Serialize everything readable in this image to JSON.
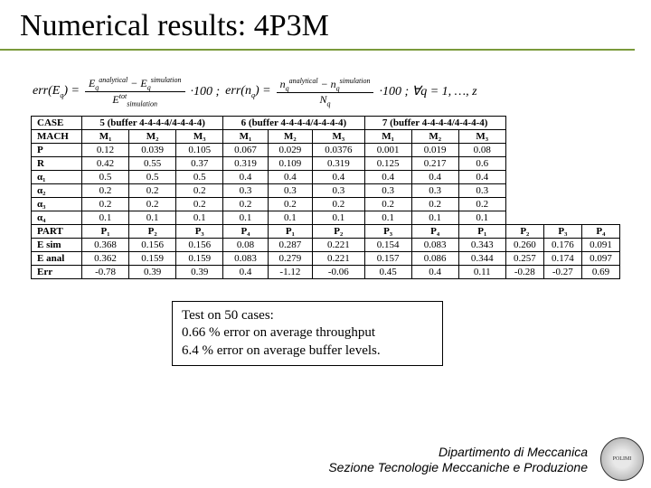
{
  "title": "Numerical results: 4P3M",
  "formula": {
    "lhs1": "err(E",
    "sub_q": "q",
    "eq": ") =",
    "num1": "E_q^{analytical} − E_q^{simulation}",
    "den1": "E_{simulation}^{tot}",
    "times": "·100 ;",
    "lhs2": "err(n",
    "num2": "n_q^{analytical} − n_q^{simulation}",
    "den2": "N_q",
    "tail": "·100 ; ∀q = 1, …, z"
  },
  "table": {
    "case_label": "CASE",
    "mach_label": "MACH",
    "cases": [
      "5 (buffer 4-4-4-4/4-4-4-4)",
      "6 (buffer 4-4-4-4/4-4-4-4)",
      "7 (buffer 4-4-4-4/4-4-4-4)"
    ],
    "mach_cols": [
      "M₁",
      "M₂",
      "M₃",
      "M₁",
      "M₂",
      "M₃",
      "M₁",
      "M₂",
      "M₃"
    ],
    "rows1": [
      {
        "h": "P",
        "v": [
          "0.12",
          "0.039",
          "0.105",
          "0.067",
          "0.029",
          "0.0376",
          "0.001",
          "0.019",
          "0.08"
        ]
      },
      {
        "h": "R",
        "v": [
          "0.42",
          "0.55",
          "0.37",
          "0.319",
          "0.109",
          "0.319",
          "0.125",
          "0.217",
          "0.6"
        ]
      },
      {
        "h": "α₁",
        "v": [
          "0.5",
          "0.5",
          "0.5",
          "0.4",
          "0.4",
          "0.4",
          "0.4",
          "0.4",
          "0.4"
        ]
      },
      {
        "h": "α₂",
        "v": [
          "0.2",
          "0.2",
          "0.2",
          "0.3",
          "0.3",
          "0.3",
          "0.3",
          "0.3",
          "0.3"
        ]
      },
      {
        "h": "α₃",
        "v": [
          "0.2",
          "0.2",
          "0.2",
          "0.2",
          "0.2",
          "0.2",
          "0.2",
          "0.2",
          "0.2"
        ]
      },
      {
        "h": "α₄",
        "v": [
          "0.1",
          "0.1",
          "0.1",
          "0.1",
          "0.1",
          "0.1",
          "0.1",
          "0.1",
          "0.1"
        ]
      }
    ],
    "part_label": "PART",
    "part_cols": [
      "P₁",
      "P₂",
      "P₃",
      "P₄",
      "P₁",
      "P₂",
      "P₃",
      "P₄",
      "P₁",
      "P₂",
      "P₃",
      "P₄"
    ],
    "rows2": [
      {
        "h": "E sim",
        "v": [
          "0.368",
          "0.156",
          "0.156",
          "0.08",
          "0.287",
          "0.221",
          "0.154",
          "0.083",
          "0.343",
          "0.260",
          "0.176",
          "0.091"
        ]
      },
      {
        "h": "E anal",
        "v": [
          "0.362",
          "0.159",
          "0.159",
          "0.083",
          "0.279",
          "0.221",
          "0.157",
          "0.086",
          "0.344",
          "0.257",
          "0.174",
          "0.097"
        ]
      },
      {
        "h": "Err",
        "v": [
          "-0.78",
          "0.39",
          "0.39",
          "0.4",
          "-1.12",
          "-0.06",
          "0.45",
          "0.4",
          "0.11",
          "-0.28",
          "-0.27",
          "0.69"
        ]
      }
    ]
  },
  "note": {
    "l1": "Test on 50 cases:",
    "l2": "0.66 % error on average throughput",
    "l3": "6.4 % error on average buffer levels."
  },
  "footer": {
    "l1": "Dipartimento di Meccanica",
    "l2": "Sezione Tecnologie Meccaniche e Produzione"
  }
}
